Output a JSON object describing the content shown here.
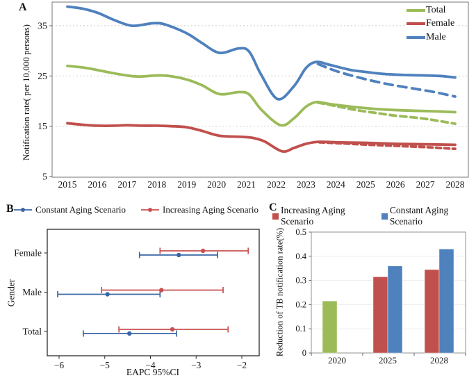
{
  "panels": {
    "a": "A",
    "b": "B",
    "c": "C"
  },
  "chart_data": [
    {
      "id": "A",
      "type": "line",
      "ylabel": "Notification rate( per 10,000 persons)",
      "xlabel": "",
      "x_ticks": [
        2015,
        2016,
        2017,
        2018,
        2019,
        2020,
        2021,
        2022,
        2023,
        2024,
        2025,
        2026,
        2027,
        2028
      ],
      "y_ticks": [
        5,
        15,
        25,
        35
      ],
      "ylim": [
        5,
        39.7
      ],
      "xlim": [
        2014.5,
        2028.45
      ],
      "grid": "horizontal-dotted",
      "legend_position": "top-right-inside",
      "legend": [
        {
          "label": "Total",
          "color": "#9BBB59"
        },
        {
          "label": "Female",
          "color": "#C0504D"
        },
        {
          "label": "Male",
          "color": "#4F81BD"
        }
      ],
      "series": [
        {
          "name": "Male",
          "style": "solid",
          "color": "#4F81BD",
          "points": [
            [
              2015,
              38.8
            ],
            [
              2015.5,
              38.4
            ],
            [
              2016,
              37.6
            ],
            [
              2016.5,
              36.3
            ],
            [
              2017,
              35.2
            ],
            [
              2017.3,
              35.0
            ],
            [
              2017.9,
              35.5
            ],
            [
              2018.3,
              35.2
            ],
            [
              2019,
              33.5
            ],
            [
              2019.5,
              31.6
            ],
            [
              2020.1,
              29.6
            ],
            [
              2020.75,
              30.5
            ],
            [
              2021.1,
              29.8
            ],
            [
              2021.5,
              25.2
            ],
            [
              2022.05,
              20.4
            ],
            [
              2022.6,
              23.0
            ],
            [
              2023,
              26.6
            ],
            [
              2023.35,
              27.8
            ],
            [
              2023.8,
              27.2
            ],
            [
              2024.5,
              26.2
            ],
            [
              2025,
              25.8
            ],
            [
              2025.6,
              25.4
            ],
            [
              2026.3,
              25.2
            ],
            [
              2027,
              25.1
            ],
            [
              2027.5,
              25.0
            ],
            [
              2028,
              24.7
            ]
          ]
        },
        {
          "name": "Male projection",
          "style": "dashed",
          "color": "#4F81BD",
          "points": [
            [
              2023.4,
              27.4
            ],
            [
              2024,
              26.0
            ],
            [
              2024.7,
              24.8
            ],
            [
              2025.4,
              23.8
            ],
            [
              2026,
              23.1
            ],
            [
              2026.7,
              22.4
            ],
            [
              2027.3,
              21.8
            ],
            [
              2028,
              20.9
            ]
          ]
        },
        {
          "name": "Total",
          "style": "solid",
          "color": "#9BBB59",
          "points": [
            [
              2015,
              27.0
            ],
            [
              2015.5,
              26.7
            ],
            [
              2016,
              26.2
            ],
            [
              2016.5,
              25.6
            ],
            [
              2017,
              25.1
            ],
            [
              2017.4,
              24.9
            ],
            [
              2018,
              25.1
            ],
            [
              2018.4,
              25.0
            ],
            [
              2019,
              24.3
            ],
            [
              2019.5,
              23.2
            ],
            [
              2020.1,
              21.4
            ],
            [
              2020.75,
              21.8
            ],
            [
              2021.1,
              21.3
            ],
            [
              2021.5,
              18.3
            ],
            [
              2022.15,
              15.2
            ],
            [
              2022.6,
              16.6
            ],
            [
              2023,
              18.9
            ],
            [
              2023.35,
              19.8
            ],
            [
              2023.8,
              19.4
            ],
            [
              2024.5,
              18.9
            ],
            [
              2025,
              18.6
            ],
            [
              2025.7,
              18.3
            ],
            [
              2026.5,
              18.1
            ],
            [
              2027.2,
              18.0
            ],
            [
              2028,
              17.8
            ]
          ]
        },
        {
          "name": "Total projection",
          "style": "dashed",
          "color": "#9BBB59",
          "points": [
            [
              2023.4,
              19.7
            ],
            [
              2024,
              19.0
            ],
            [
              2024.7,
              18.2
            ],
            [
              2025.4,
              17.6
            ],
            [
              2026,
              17.1
            ],
            [
              2026.7,
              16.7
            ],
            [
              2027.3,
              16.2
            ],
            [
              2028,
              15.5
            ]
          ]
        },
        {
          "name": "Female",
          "style": "solid",
          "color": "#C0504D",
          "points": [
            [
              2015,
              15.6
            ],
            [
              2015.5,
              15.3
            ],
            [
              2016,
              15.1
            ],
            [
              2016.6,
              15.1
            ],
            [
              2017,
              15.2
            ],
            [
              2017.5,
              15.1
            ],
            [
              2018,
              15.1
            ],
            [
              2018.5,
              15.0
            ],
            [
              2019,
              14.8
            ],
            [
              2019.5,
              14.1
            ],
            [
              2020.1,
              13.1
            ],
            [
              2020.8,
              12.9
            ],
            [
              2021.2,
              12.7
            ],
            [
              2021.6,
              12.0
            ],
            [
              2022.2,
              10.0
            ],
            [
              2022.6,
              10.7
            ],
            [
              2023,
              11.5
            ],
            [
              2023.4,
              11.9
            ],
            [
              2024,
              11.8
            ],
            [
              2025,
              11.7
            ],
            [
              2026,
              11.5
            ],
            [
              2027,
              11.4
            ],
            [
              2028,
              11.3
            ]
          ]
        },
        {
          "name": "Female projection",
          "style": "dashed",
          "color": "#C0504D",
          "points": [
            [
              2023.45,
              11.8
            ],
            [
              2024,
              11.65
            ],
            [
              2025,
              11.35
            ],
            [
              2026,
              11.1
            ],
            [
              2027,
              10.85
            ],
            [
              2028,
              10.5
            ]
          ]
        }
      ]
    },
    {
      "id": "B",
      "type": "scatter",
      "subtype": "errorbar-forest",
      "xlabel": "EAPC 95%CI",
      "ylabel": "Gender",
      "categories": [
        "Female",
        "Male",
        "Total"
      ],
      "x_ticks": [
        -6,
        -5,
        -4,
        -3,
        -2
      ],
      "xlim": [
        -6.3,
        -1.55
      ],
      "legend_position": "top-center-outside",
      "legend": [
        {
          "label": "Constant Aging Scenario",
          "color": "#3A66A5"
        },
        {
          "label": "Increasing Aging Scenario",
          "color": "#C8514F"
        }
      ],
      "series": [
        {
          "name": "Constant Aging Scenario",
          "color": "#3A66A5",
          "values": [
            {
              "category": "Female",
              "est": -3.38,
              "lo": -4.24,
              "hi": -2.53
            },
            {
              "category": "Male",
              "est": -4.94,
              "lo": -6.03,
              "hi": -3.79
            },
            {
              "category": "Total",
              "est": -4.46,
              "lo": -5.47,
              "hi": -3.43
            }
          ]
        },
        {
          "name": "Increasing Aging Scenario",
          "color": "#C8514F",
          "values": [
            {
              "category": "Female",
              "est": -2.85,
              "lo": -3.79,
              "hi": -1.86
            },
            {
              "category": "Male",
              "est": -3.76,
              "lo": -5.07,
              "hi": -2.41
            },
            {
              "category": "Total",
              "est": -3.52,
              "lo": -4.69,
              "hi": -2.3
            }
          ]
        }
      ]
    },
    {
      "id": "C",
      "type": "bar",
      "ylabel": "Reduction of TB notification rate(%)",
      "xlabel": "",
      "categories": [
        "2020",
        "2025",
        "2028"
      ],
      "y_ticks": [
        0,
        0.1,
        0.2,
        0.3,
        0.4,
        0.5
      ],
      "ylim": [
        0,
        0.5
      ],
      "grid": "horizontal-light",
      "legend_position": "top-center-outside",
      "legend": [
        {
          "label": "Increasing Aging Scenario",
          "color": "#C0504D"
        },
        {
          "label": "Constant Aging Scenario",
          "color": "#4F81BD"
        }
      ],
      "groups": [
        {
          "category": "2020",
          "bars": [
            {
              "series": "2020 observed",
              "color": "#9BBB59",
              "value": 0.215
            }
          ]
        },
        {
          "category": "2025",
          "bars": [
            {
              "series": "Increasing Aging Scenario",
              "color": "#C0504D",
              "value": 0.315
            },
            {
              "series": "Constant Aging Scenario",
              "color": "#4F81BD",
              "value": 0.36
            }
          ]
        },
        {
          "category": "2028",
          "bars": [
            {
              "series": "Increasing Aging Scenario",
              "color": "#C0504D",
              "value": 0.345
            },
            {
              "series": "Constant Aging Scenario",
              "color": "#4F81BD",
              "value": 0.43
            }
          ]
        }
      ]
    }
  ]
}
